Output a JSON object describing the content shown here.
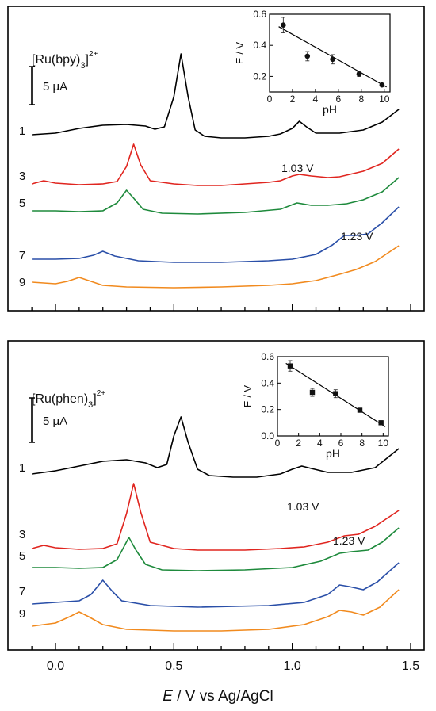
{
  "chart_data": [
    {
      "type": "line",
      "title": "[Ru(bpy)3]2+",
      "complex_text": "[Ru(bpy)",
      "complex_sub": "3",
      "complex_close": "]",
      "complex_sup": "2+",
      "scale_bar_label": "5 μA",
      "xlim": [
        -0.15,
        1.52
      ],
      "annotations": [
        "1.03 V",
        "1.23 V"
      ],
      "annotation_x": [
        1.03,
        1.23
      ],
      "series": [
        {
          "name": "1",
          "color": "#000000",
          "offset": 0,
          "points": [
            [
              -0.1,
              0.0
            ],
            [
              0.0,
              0.1
            ],
            [
              0.1,
              0.4
            ],
            [
              0.2,
              0.6
            ],
            [
              0.3,
              0.65
            ],
            [
              0.38,
              0.55
            ],
            [
              0.42,
              0.35
            ],
            [
              0.46,
              0.5
            ],
            [
              0.5,
              2.4
            ],
            [
              0.53,
              5.1
            ],
            [
              0.56,
              2.4
            ],
            [
              0.59,
              0.3
            ],
            [
              0.63,
              -0.1
            ],
            [
              0.7,
              -0.2
            ],
            [
              0.8,
              -0.2
            ],
            [
              0.9,
              -0.1
            ],
            [
              0.95,
              0.05
            ],
            [
              1.0,
              0.4
            ],
            [
              1.03,
              0.85
            ],
            [
              1.06,
              0.5
            ],
            [
              1.1,
              0.1
            ],
            [
              1.2,
              0.1
            ],
            [
              1.3,
              0.3
            ],
            [
              1.38,
              0.8
            ],
            [
              1.45,
              1.6
            ]
          ]
        },
        {
          "name": "3",
          "color": "#e0251f",
          "offset": 0,
          "points": [
            [
              -0.1,
              0.0
            ],
            [
              -0.05,
              0.2
            ],
            [
              0.0,
              0.05
            ],
            [
              0.1,
              -0.05
            ],
            [
              0.2,
              0.0
            ],
            [
              0.26,
              0.15
            ],
            [
              0.3,
              1.1
            ],
            [
              0.33,
              2.5
            ],
            [
              0.36,
              1.2
            ],
            [
              0.4,
              0.2
            ],
            [
              0.5,
              0.0
            ],
            [
              0.6,
              -0.1
            ],
            [
              0.7,
              -0.1
            ],
            [
              0.8,
              0.0
            ],
            [
              0.9,
              0.1
            ],
            [
              0.95,
              0.2
            ],
            [
              1.0,
              0.5
            ],
            [
              1.03,
              0.6
            ],
            [
              1.08,
              0.5
            ],
            [
              1.15,
              0.4
            ],
            [
              1.2,
              0.45
            ],
            [
              1.3,
              0.8
            ],
            [
              1.38,
              1.3
            ],
            [
              1.45,
              2.2
            ]
          ]
        },
        {
          "name": "5",
          "color": "#1e8a3c",
          "offset": 0,
          "points": [
            [
              -0.1,
              0.0
            ],
            [
              0.0,
              0.0
            ],
            [
              0.1,
              -0.05
            ],
            [
              0.2,
              0.0
            ],
            [
              0.26,
              0.5
            ],
            [
              0.3,
              1.3
            ],
            [
              0.33,
              0.8
            ],
            [
              0.37,
              0.1
            ],
            [
              0.45,
              -0.15
            ],
            [
              0.6,
              -0.2
            ],
            [
              0.8,
              -0.1
            ],
            [
              0.95,
              0.1
            ],
            [
              1.02,
              0.5
            ],
            [
              1.08,
              0.35
            ],
            [
              1.15,
              0.35
            ],
            [
              1.23,
              0.45
            ],
            [
              1.3,
              0.7
            ],
            [
              1.38,
              1.2
            ],
            [
              1.45,
              2.1
            ]
          ]
        },
        {
          "name": "7",
          "color": "#2a4fa8",
          "offset": 0,
          "points": [
            [
              -0.1,
              0.0
            ],
            [
              0.0,
              0.0
            ],
            [
              0.1,
              0.05
            ],
            [
              0.16,
              0.25
            ],
            [
              0.2,
              0.5
            ],
            [
              0.25,
              0.2
            ],
            [
              0.35,
              -0.1
            ],
            [
              0.5,
              -0.2
            ],
            [
              0.7,
              -0.2
            ],
            [
              0.9,
              -0.1
            ],
            [
              1.0,
              0.0
            ],
            [
              1.1,
              0.3
            ],
            [
              1.17,
              0.9
            ],
            [
              1.22,
              1.5
            ],
            [
              1.27,
              1.5
            ],
            [
              1.32,
              1.6
            ],
            [
              1.38,
              2.3
            ],
            [
              1.45,
              3.3
            ]
          ]
        },
        {
          "name": "9",
          "color": "#f18a1e",
          "offset": 0,
          "points": [
            [
              -0.1,
              0.0
            ],
            [
              0.0,
              -0.1
            ],
            [
              0.05,
              0.05
            ],
            [
              0.1,
              0.3
            ],
            [
              0.14,
              0.1
            ],
            [
              0.2,
              -0.2
            ],
            [
              0.3,
              -0.3
            ],
            [
              0.5,
              -0.35
            ],
            [
              0.7,
              -0.3
            ],
            [
              0.9,
              -0.2
            ],
            [
              1.0,
              -0.1
            ],
            [
              1.1,
              0.1
            ],
            [
              1.2,
              0.5
            ],
            [
              1.27,
              0.8
            ],
            [
              1.35,
              1.3
            ],
            [
              1.45,
              2.3
            ]
          ]
        }
      ],
      "inset": {
        "type": "scatter",
        "xlabel": "pH",
        "ylabel": "E / V",
        "xlim": [
          0,
          10.5
        ],
        "ylim": [
          0.1,
          0.6
        ],
        "xticks": [
          0,
          2,
          4,
          6,
          8,
          10
        ],
        "yticks": [
          0.2,
          0.4,
          0.6
        ],
        "ytick_labels": [
          "0.2",
          "0.4",
          "0.6"
        ],
        "x": [
          1.2,
          3.3,
          5.5,
          7.8,
          9.8
        ],
        "y": [
          0.53,
          0.33,
          0.31,
          0.215,
          0.145
        ],
        "yerr": [
          0.05,
          0.03,
          0.03,
          0.015,
          0.01
        ],
        "fit": [
          [
            0.8,
            0.52
          ],
          [
            10.2,
            0.132
          ]
        ]
      }
    },
    {
      "type": "line",
      "title": "[Ru(phen)3]2+",
      "complex_text": "[Ru(phen)",
      "complex_sub": "3",
      "complex_close": "]",
      "complex_sup": "2+",
      "scale_bar_label": "5 μA",
      "xlim": [
        -0.15,
        1.52
      ],
      "xlabel_italic": "E",
      "xlabel_rest": " / V vs Ag/AgCl",
      "xticks": [
        0.0,
        0.5,
        1.0,
        1.5
      ],
      "xtick_labels": [
        "0.0",
        "0.5",
        "1.0",
        "1.5"
      ],
      "annotations": [
        "1.03 V",
        "1.23 V"
      ],
      "annotation_x": [
        1.03,
        1.23
      ],
      "series": [
        {
          "name": "1",
          "color": "#000000",
          "offset": 0,
          "points": [
            [
              -0.1,
              0.0
            ],
            [
              0.0,
              0.2
            ],
            [
              0.1,
              0.5
            ],
            [
              0.2,
              0.8
            ],
            [
              0.3,
              0.9
            ],
            [
              0.38,
              0.7
            ],
            [
              0.43,
              0.4
            ],
            [
              0.47,
              0.6
            ],
            [
              0.5,
              2.4
            ],
            [
              0.53,
              3.6
            ],
            [
              0.56,
              2.0
            ],
            [
              0.6,
              0.3
            ],
            [
              0.65,
              -0.1
            ],
            [
              0.75,
              -0.2
            ],
            [
              0.85,
              -0.2
            ],
            [
              0.95,
              0.0
            ],
            [
              1.0,
              0.3
            ],
            [
              1.04,
              0.5
            ],
            [
              1.08,
              0.35
            ],
            [
              1.15,
              0.1
            ],
            [
              1.25,
              0.1
            ],
            [
              1.35,
              0.4
            ],
            [
              1.45,
              1.6
            ]
          ]
        },
        {
          "name": "3",
          "color": "#e0251f",
          "offset": 0,
          "points": [
            [
              -0.1,
              0.0
            ],
            [
              -0.05,
              0.2
            ],
            [
              0.0,
              0.05
            ],
            [
              0.1,
              -0.05
            ],
            [
              0.2,
              0.0
            ],
            [
              0.26,
              0.3
            ],
            [
              0.3,
              2.2
            ],
            [
              0.33,
              4.1
            ],
            [
              0.36,
              2.3
            ],
            [
              0.4,
              0.4
            ],
            [
              0.5,
              0.0
            ],
            [
              0.6,
              -0.1
            ],
            [
              0.8,
              -0.1
            ],
            [
              0.95,
              0.0
            ],
            [
              1.05,
              0.1
            ],
            [
              1.15,
              0.4
            ],
            [
              1.22,
              0.8
            ],
            [
              1.28,
              0.9
            ],
            [
              1.35,
              1.4
            ],
            [
              1.45,
              2.4
            ]
          ]
        },
        {
          "name": "5",
          "color": "#1e8a3c",
          "offset": 0,
          "points": [
            [
              -0.1,
              0.0
            ],
            [
              0.0,
              0.0
            ],
            [
              0.1,
              -0.05
            ],
            [
              0.2,
              0.0
            ],
            [
              0.26,
              0.5
            ],
            [
              0.31,
              1.9
            ],
            [
              0.34,
              1.1
            ],
            [
              0.38,
              0.2
            ],
            [
              0.45,
              -0.15
            ],
            [
              0.6,
              -0.2
            ],
            [
              0.8,
              -0.15
            ],
            [
              1.0,
              0.0
            ],
            [
              1.12,
              0.4
            ],
            [
              1.2,
              0.9
            ],
            [
              1.25,
              1.0
            ],
            [
              1.32,
              1.1
            ],
            [
              1.38,
              1.6
            ],
            [
              1.45,
              2.5
            ]
          ]
        },
        {
          "name": "7",
          "color": "#2a4fa8",
          "offset": 0,
          "points": [
            [
              -0.1,
              0.0
            ],
            [
              0.0,
              0.1
            ],
            [
              0.1,
              0.2
            ],
            [
              0.15,
              0.6
            ],
            [
              0.2,
              1.5
            ],
            [
              0.24,
              0.8
            ],
            [
              0.28,
              0.2
            ],
            [
              0.4,
              -0.1
            ],
            [
              0.6,
              -0.2
            ],
            [
              0.9,
              -0.1
            ],
            [
              1.05,
              0.1
            ],
            [
              1.15,
              0.6
            ],
            [
              1.2,
              1.2
            ],
            [
              1.24,
              1.1
            ],
            [
              1.3,
              0.9
            ],
            [
              1.36,
              1.4
            ],
            [
              1.45,
              2.6
            ]
          ]
        },
        {
          "name": "9",
          "color": "#f18a1e",
          "offset": 0,
          "points": [
            [
              -0.1,
              0.0
            ],
            [
              0.0,
              0.2
            ],
            [
              0.06,
              0.6
            ],
            [
              0.1,
              0.9
            ],
            [
              0.14,
              0.6
            ],
            [
              0.2,
              0.1
            ],
            [
              0.3,
              -0.2
            ],
            [
              0.5,
              -0.3
            ],
            [
              0.7,
              -0.3
            ],
            [
              0.9,
              -0.2
            ],
            [
              1.05,
              0.1
            ],
            [
              1.15,
              0.6
            ],
            [
              1.2,
              1.0
            ],
            [
              1.25,
              0.9
            ],
            [
              1.3,
              0.7
            ],
            [
              1.37,
              1.2
            ],
            [
              1.45,
              2.3
            ]
          ]
        }
      ],
      "inset": {
        "type": "scatter",
        "xlabel": "pH",
        "ylabel": "E / V",
        "xlim": [
          0,
          10.5
        ],
        "ylim": [
          0.0,
          0.6
        ],
        "xticks": [
          0,
          2,
          4,
          6,
          8,
          10
        ],
        "yticks": [
          0.0,
          0.2,
          0.4,
          0.6
        ],
        "ytick_labels": [
          "0.0",
          "0.2",
          "0.4",
          "0.6"
        ],
        "x": [
          1.2,
          3.3,
          5.5,
          7.8,
          9.8
        ],
        "y": [
          0.53,
          0.33,
          0.32,
          0.195,
          0.1
        ],
        "yerr": [
          0.04,
          0.03,
          0.03,
          0.015,
          0.015
        ],
        "fit": [
          [
            0.8,
            0.55
          ],
          [
            10.2,
            0.07
          ]
        ]
      }
    }
  ]
}
